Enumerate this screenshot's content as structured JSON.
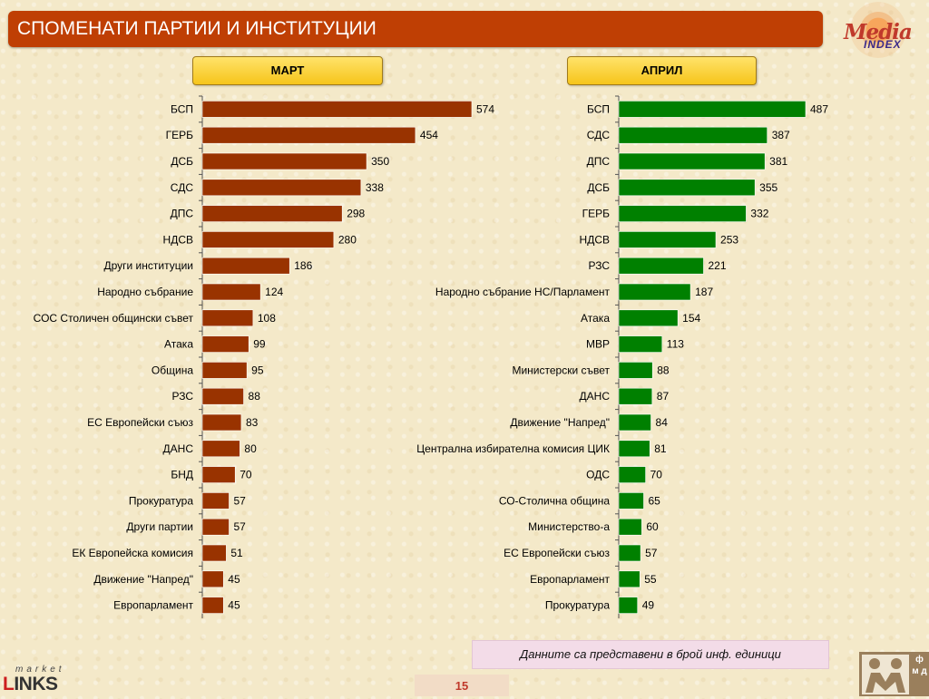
{
  "header": {
    "title": "СПОМЕНАТИ ПАРТИИ И ИНСТИТУЦИИ"
  },
  "logos": {
    "media_index": {
      "word1": "Media",
      "word2": "INDEX"
    },
    "market_links": {
      "top": "market",
      "bottom_first": "L",
      "bottom_rest": "INKS"
    },
    "fmd": {
      "side": "ф м д"
    }
  },
  "colors": {
    "march_bar": "#993300",
    "april_bar": "#008000",
    "title_bg": "#bf3f04",
    "button": "#f6c51a"
  },
  "chart_data": [
    {
      "type": "bar",
      "orientation": "horizontal",
      "panel_label": "МАРТ",
      "categories": [
        "БСП",
        "ГЕРБ",
        "ДСБ",
        "СДС",
        "ДПС",
        "НДСВ",
        "Други институции",
        "Народно събрание",
        "СОС Столичен общински съвет",
        "Атака",
        "Община",
        "РЗС",
        "ЕС Европейски съюз",
        "ДАНС",
        "БНД",
        "Прокуратура",
        "Други партии",
        "ЕК  Европейска комисия",
        "Движение \"Напред\"",
        "Европарламент"
      ],
      "values": [
        574,
        454,
        350,
        338,
        298,
        280,
        186,
        124,
        108,
        99,
        95,
        88,
        83,
        80,
        70,
        57,
        57,
        51,
        45,
        45
      ],
      "xlim": [
        0,
        574
      ]
    },
    {
      "type": "bar",
      "orientation": "horizontal",
      "panel_label": "АПРИЛ",
      "categories": [
        "БСП",
        "СДС",
        "ДПС",
        "ДСБ",
        "ГЕРБ",
        "НДСВ",
        "РЗС",
        "Народно събрание НС/Парламент",
        "Атака",
        "МВР",
        "Министерски съвет",
        "ДАНС",
        "Движение \"Напред\"",
        "Централна избирателна комисия ЦИК",
        "ОДС",
        "СО-Столична община",
        "Министерство-а",
        "ЕС Европейски съюз",
        "Европарламент",
        "Прокуратура"
      ],
      "values": [
        487,
        387,
        381,
        355,
        332,
        253,
        221,
        187,
        154,
        113,
        88,
        87,
        84,
        81,
        70,
        65,
        60,
        57,
        55,
        49
      ],
      "xlim": [
        0,
        487
      ]
    }
  ],
  "note": "Данните са представени в брой инф. единици",
  "page_number": "15"
}
